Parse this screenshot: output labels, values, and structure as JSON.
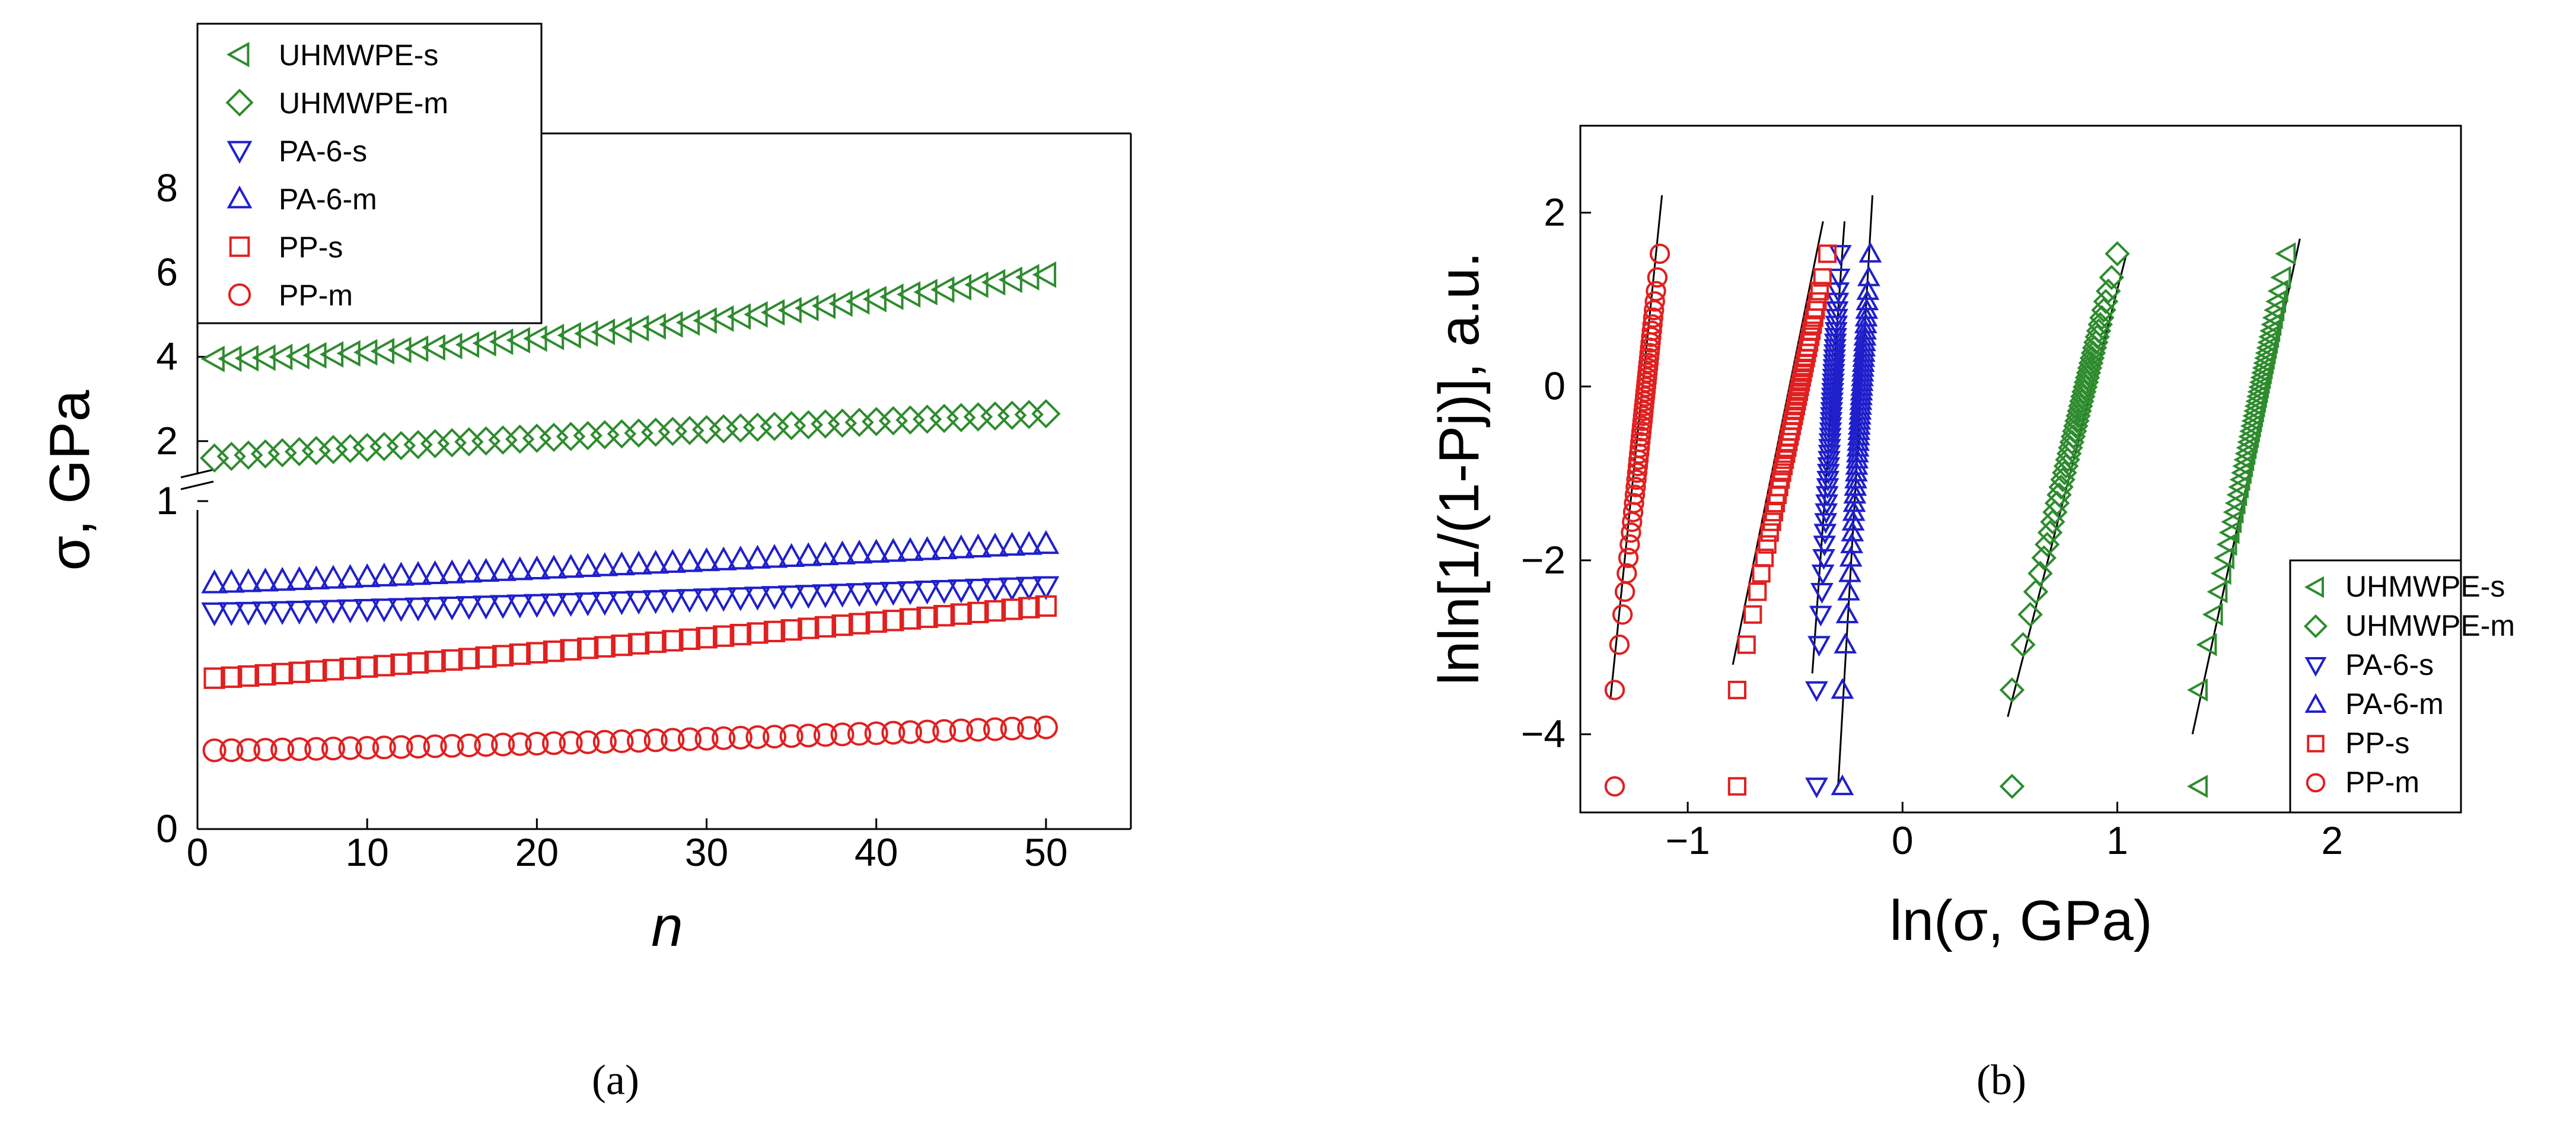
{
  "figure": {
    "panel_labels": {
      "a": "(a)",
      "b": "(b)"
    }
  },
  "colors": {
    "green": "#2e8b2e",
    "blue": "#1f1fcc",
    "red": "#e02020"
  },
  "chart_data": [
    {
      "id": "a",
      "type": "scatter",
      "xlabel": "n",
      "ylabel": "σ, GPa",
      "xlim": [
        0,
        55
      ],
      "x_ticks": [
        0,
        10,
        20,
        30,
        40,
        50
      ],
      "y_lower": {
        "range": [
          0,
          1
        ],
        "ticks": [
          0,
          1
        ]
      },
      "y_upper": {
        "range": [
          1,
          9.3
        ],
        "ticks": [
          2,
          4,
          6,
          8
        ]
      },
      "axis_break": true,
      "legend": [
        "UHMWPE-s",
        "UHMWPE-m",
        "PA-6-s",
        "PA-6-m",
        "PP-s",
        "PP-m"
      ],
      "series": [
        {
          "name": "UHMWPE-s",
          "marker": "triangle-left",
          "color": "green",
          "scale": "upper",
          "n_from": 1,
          "n_to": 50,
          "start": 3.95,
          "end": 5.95,
          "curve": 1.5
        },
        {
          "name": "UHMWPE-m",
          "marker": "diamond",
          "color": "green",
          "scale": "upper",
          "n_from": 1,
          "n_to": 50,
          "start": 1.6,
          "end": 2.65,
          "curve": 0.85
        },
        {
          "name": "PA-6-s",
          "marker": "triangle-down",
          "color": "blue",
          "scale": "lower",
          "n_from": 1,
          "n_to": 50,
          "start": 0.66,
          "end": 0.74,
          "curve": 1.2
        },
        {
          "name": "PA-6-m",
          "marker": "triangle-up",
          "color": "blue",
          "scale": "lower",
          "n_from": 1,
          "n_to": 50,
          "start": 0.75,
          "end": 0.87,
          "curve": 1.1
        },
        {
          "name": "PP-s",
          "marker": "square",
          "color": "red",
          "scale": "lower",
          "n_from": 1,
          "n_to": 50,
          "start": 0.46,
          "end": 0.68,
          "curve": 1.1
        },
        {
          "name": "PP-m",
          "marker": "circle",
          "color": "red",
          "scale": "lower",
          "n_from": 1,
          "n_to": 50,
          "start": 0.24,
          "end": 0.31,
          "curve": 1.3
        }
      ]
    },
    {
      "id": "b",
      "type": "scatter",
      "xlabel": "ln(σ, GPa)",
      "ylabel": "lnln[1/(1-Pj)], a.u.",
      "xlim": [
        -1.5,
        2.6
      ],
      "ylim": [
        -4.9,
        3.0
      ],
      "x_ticks": [
        -1,
        0,
        1,
        2
      ],
      "y_ticks": [
        -4,
        -2,
        0,
        2
      ],
      "legend": [
        "UHMWPE-s",
        "UHMWPE-m",
        "PA-6-s",
        "PA-6-m",
        "PP-s",
        "PP-m"
      ],
      "series": [
        {
          "name": "UHMWPE-s",
          "marker": "triangle-left",
          "color": "green",
          "x_min": 1.38,
          "x_max": 1.79,
          "fit": [
            [
              1.35,
              -4.0
            ],
            [
              1.85,
              1.7
            ]
          ]
        },
        {
          "name": "UHMWPE-m",
          "marker": "diamond",
          "color": "green",
          "x_min": 0.51,
          "x_max": 1.0,
          "fit": [
            [
              0.49,
              -3.8
            ],
            [
              1.04,
              1.5
            ]
          ]
        },
        {
          "name": "PA-6-s",
          "marker": "triangle-down",
          "color": "blue",
          "x_min": -0.4,
          "x_max": -0.29,
          "fit": [
            [
              -0.42,
              -3.3
            ],
            [
              -0.27,
              1.9
            ]
          ]
        },
        {
          "name": "PA-6-m",
          "marker": "triangle-up",
          "color": "blue",
          "x_min": -0.28,
          "x_max": -0.15,
          "fit": [
            [
              -0.3,
              -4.6
            ],
            [
              -0.14,
              2.2
            ]
          ]
        },
        {
          "name": "PP-s",
          "marker": "square",
          "color": "red",
          "x_min": -0.77,
          "x_max": -0.35,
          "fit": [
            [
              -0.79,
              -3.2
            ],
            [
              -0.37,
              1.9
            ]
          ]
        },
        {
          "name": "PP-m",
          "marker": "circle",
          "color": "red",
          "x_min": -1.34,
          "x_max": -1.13,
          "fit": [
            [
              -1.36,
              -3.6
            ],
            [
              -1.12,
              2.2
            ]
          ]
        }
      ]
    }
  ]
}
